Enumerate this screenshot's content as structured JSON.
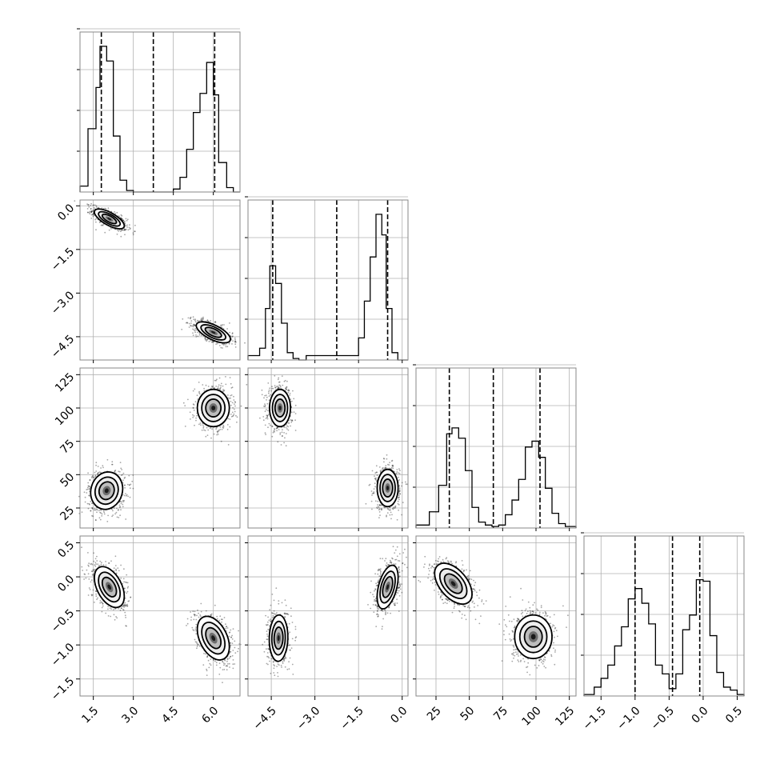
{
  "chart_data": {
    "type": "corner",
    "style": {
      "grid": true,
      "frame_color": "#888888",
      "line_color": "#000000",
      "quantile_line": "dashed"
    },
    "parameters": [
      {
        "ticks": [
          "1.5",
          "3.0",
          "4.5",
          "6.0"
        ],
        "range": [
          1.0,
          7.0
        ],
        "quantiles": [
          1.8,
          3.75,
          6.05
        ],
        "hist": {
          "edges": [
            1.0,
            1.3,
            1.6,
            1.75,
            2.0,
            2.25,
            2.5,
            2.75,
            3.0,
            3.25,
            3.5,
            3.75,
            4.0,
            4.25,
            4.5,
            4.75,
            5.0,
            5.25,
            5.5,
            5.75,
            6.0,
            6.2,
            6.5,
            6.75,
            7.0
          ],
          "counts": [
            0.04,
            0.43,
            0.71,
            0.99,
            0.89,
            0.38,
            0.08,
            0.01,
            0,
            0,
            0,
            0,
            0,
            0,
            0.02,
            0.1,
            0.29,
            0.54,
            0.67,
            0.88,
            0.66,
            0.2,
            0.03,
            0.0
          ]
        }
      },
      {
        "ticks": [
          "−4.5",
          "−3.0",
          "−1.5",
          "0.0"
        ],
        "range": [
          -5.3,
          0.2
        ],
        "quantiles": [
          -4.45,
          -2.25,
          -0.5
        ],
        "hist": {
          "edges": [
            -5.3,
            -4.9,
            -4.7,
            -4.55,
            -4.35,
            -4.15,
            -3.95,
            -3.75,
            -3.55,
            -3.3,
            -1.5,
            -1.3,
            -1.1,
            -0.9,
            -0.7,
            -0.55,
            -0.35,
            -0.15,
            0.2
          ],
          "counts": [
            0.03,
            0.08,
            0.35,
            0.64,
            0.52,
            0.25,
            0.05,
            0.01,
            0,
            0.03,
            0.15,
            0.4,
            0.7,
            0.99,
            0.85,
            0.35,
            0.05,
            0.0
          ]
        }
      },
      {
        "ticks": [
          "25",
          "50",
          "75",
          "100",
          "125"
        ],
        "range": [
          10,
          130
        ],
        "quantiles": [
          35,
          68,
          103
        ],
        "hist": {
          "edges": [
            10,
            20,
            27,
            33,
            37,
            42,
            47,
            52,
            57,
            62,
            67,
            72,
            77,
            82,
            87,
            92,
            97,
            102,
            107,
            112,
            117,
            122,
            130
          ],
          "counts": [
            0.02,
            0.11,
            0.29,
            0.64,
            0.68,
            0.61,
            0.39,
            0.14,
            0.04,
            0.02,
            0.01,
            0.02,
            0.09,
            0.19,
            0.33,
            0.55,
            0.59,
            0.48,
            0.27,
            0.1,
            0.03,
            0.01
          ]
        }
      },
      {
        "ticks": [
          "−1.5",
          "−1.0",
          "−0.5",
          "0.0",
          "0.5"
        ],
        "range": [
          -1.75,
          0.6
        ],
        "quantiles": [
          -1.0,
          -0.45,
          -0.05
        ],
        "hist": {
          "edges": [
            -1.75,
            -1.6,
            -1.5,
            -1.4,
            -1.3,
            -1.2,
            -1.1,
            -1.0,
            -0.9,
            -0.8,
            -0.7,
            -0.6,
            -0.5,
            -0.4,
            -0.3,
            -0.2,
            -0.1,
            0.0,
            0.1,
            0.2,
            0.3,
            0.4,
            0.5,
            0.6
          ],
          "counts": [
            0.01,
            0.06,
            0.12,
            0.21,
            0.34,
            0.47,
            0.66,
            0.73,
            0.63,
            0.49,
            0.21,
            0.15,
            0.05,
            0.15,
            0.45,
            0.55,
            0.79,
            0.78,
            0.41,
            0.16,
            0.06,
            0.04,
            0.01
          ]
        }
      }
    ],
    "panels": [
      {
        "row": 1,
        "col": 0,
        "clusters": [
          {
            "mean": [
              2.1,
              -0.45
            ],
            "sd": [
              0.28,
              0.17
            ],
            "corr": -0.7,
            "n": 700
          },
          {
            "mean": [
              6.0,
              -4.35
            ],
            "sd": [
              0.32,
              0.18
            ],
            "corr": -0.65,
            "n": 750
          }
        ]
      },
      {
        "row": 2,
        "col": 0,
        "clusters": [
          {
            "mean": [
              2.0,
              38
            ],
            "sd": [
              0.3,
              7
            ],
            "corr": 0.1,
            "n": 750
          },
          {
            "mean": [
              6.0,
              100
            ],
            "sd": [
              0.3,
              7
            ],
            "corr": 0.0,
            "n": 700
          }
        ]
      },
      {
        "row": 2,
        "col": 1,
        "clusters": [
          {
            "mean": [
              -4.2,
              100
            ],
            "sd": [
              0.18,
              7
            ],
            "corr": 0.0,
            "n": 700
          },
          {
            "mean": [
              -0.5,
              40
            ],
            "sd": [
              0.18,
              7
            ],
            "corr": 0.0,
            "n": 750
          }
        ]
      },
      {
        "row": 3,
        "col": 0,
        "clusters": [
          {
            "mean": [
              2.1,
              -0.15
            ],
            "sd": [
              0.28,
              0.15
            ],
            "corr": -0.45,
            "n": 750
          },
          {
            "mean": [
              6.0,
              -0.9
            ],
            "sd": [
              0.3,
              0.16
            ],
            "corr": -0.4,
            "n": 700
          }
        ]
      },
      {
        "row": 3,
        "col": 1,
        "clusters": [
          {
            "mean": [
              -4.25,
              -0.9
            ],
            "sd": [
              0.16,
              0.17
            ],
            "corr": 0.05,
            "n": 700
          },
          {
            "mean": [
              -0.5,
              -0.15
            ],
            "sd": [
              0.18,
              0.16
            ],
            "corr": 0.45,
            "n": 750
          }
        ]
      },
      {
        "row": 3,
        "col": 2,
        "clusters": [
          {
            "mean": [
              38,
              -0.1
            ],
            "sd": [
              7,
              0.15
            ],
            "corr": -0.5,
            "n": 750
          },
          {
            "mean": [
              98,
              -0.88
            ],
            "sd": [
              7,
              0.16
            ],
            "corr": 0.0,
            "n": 700
          }
        ]
      }
    ]
  }
}
